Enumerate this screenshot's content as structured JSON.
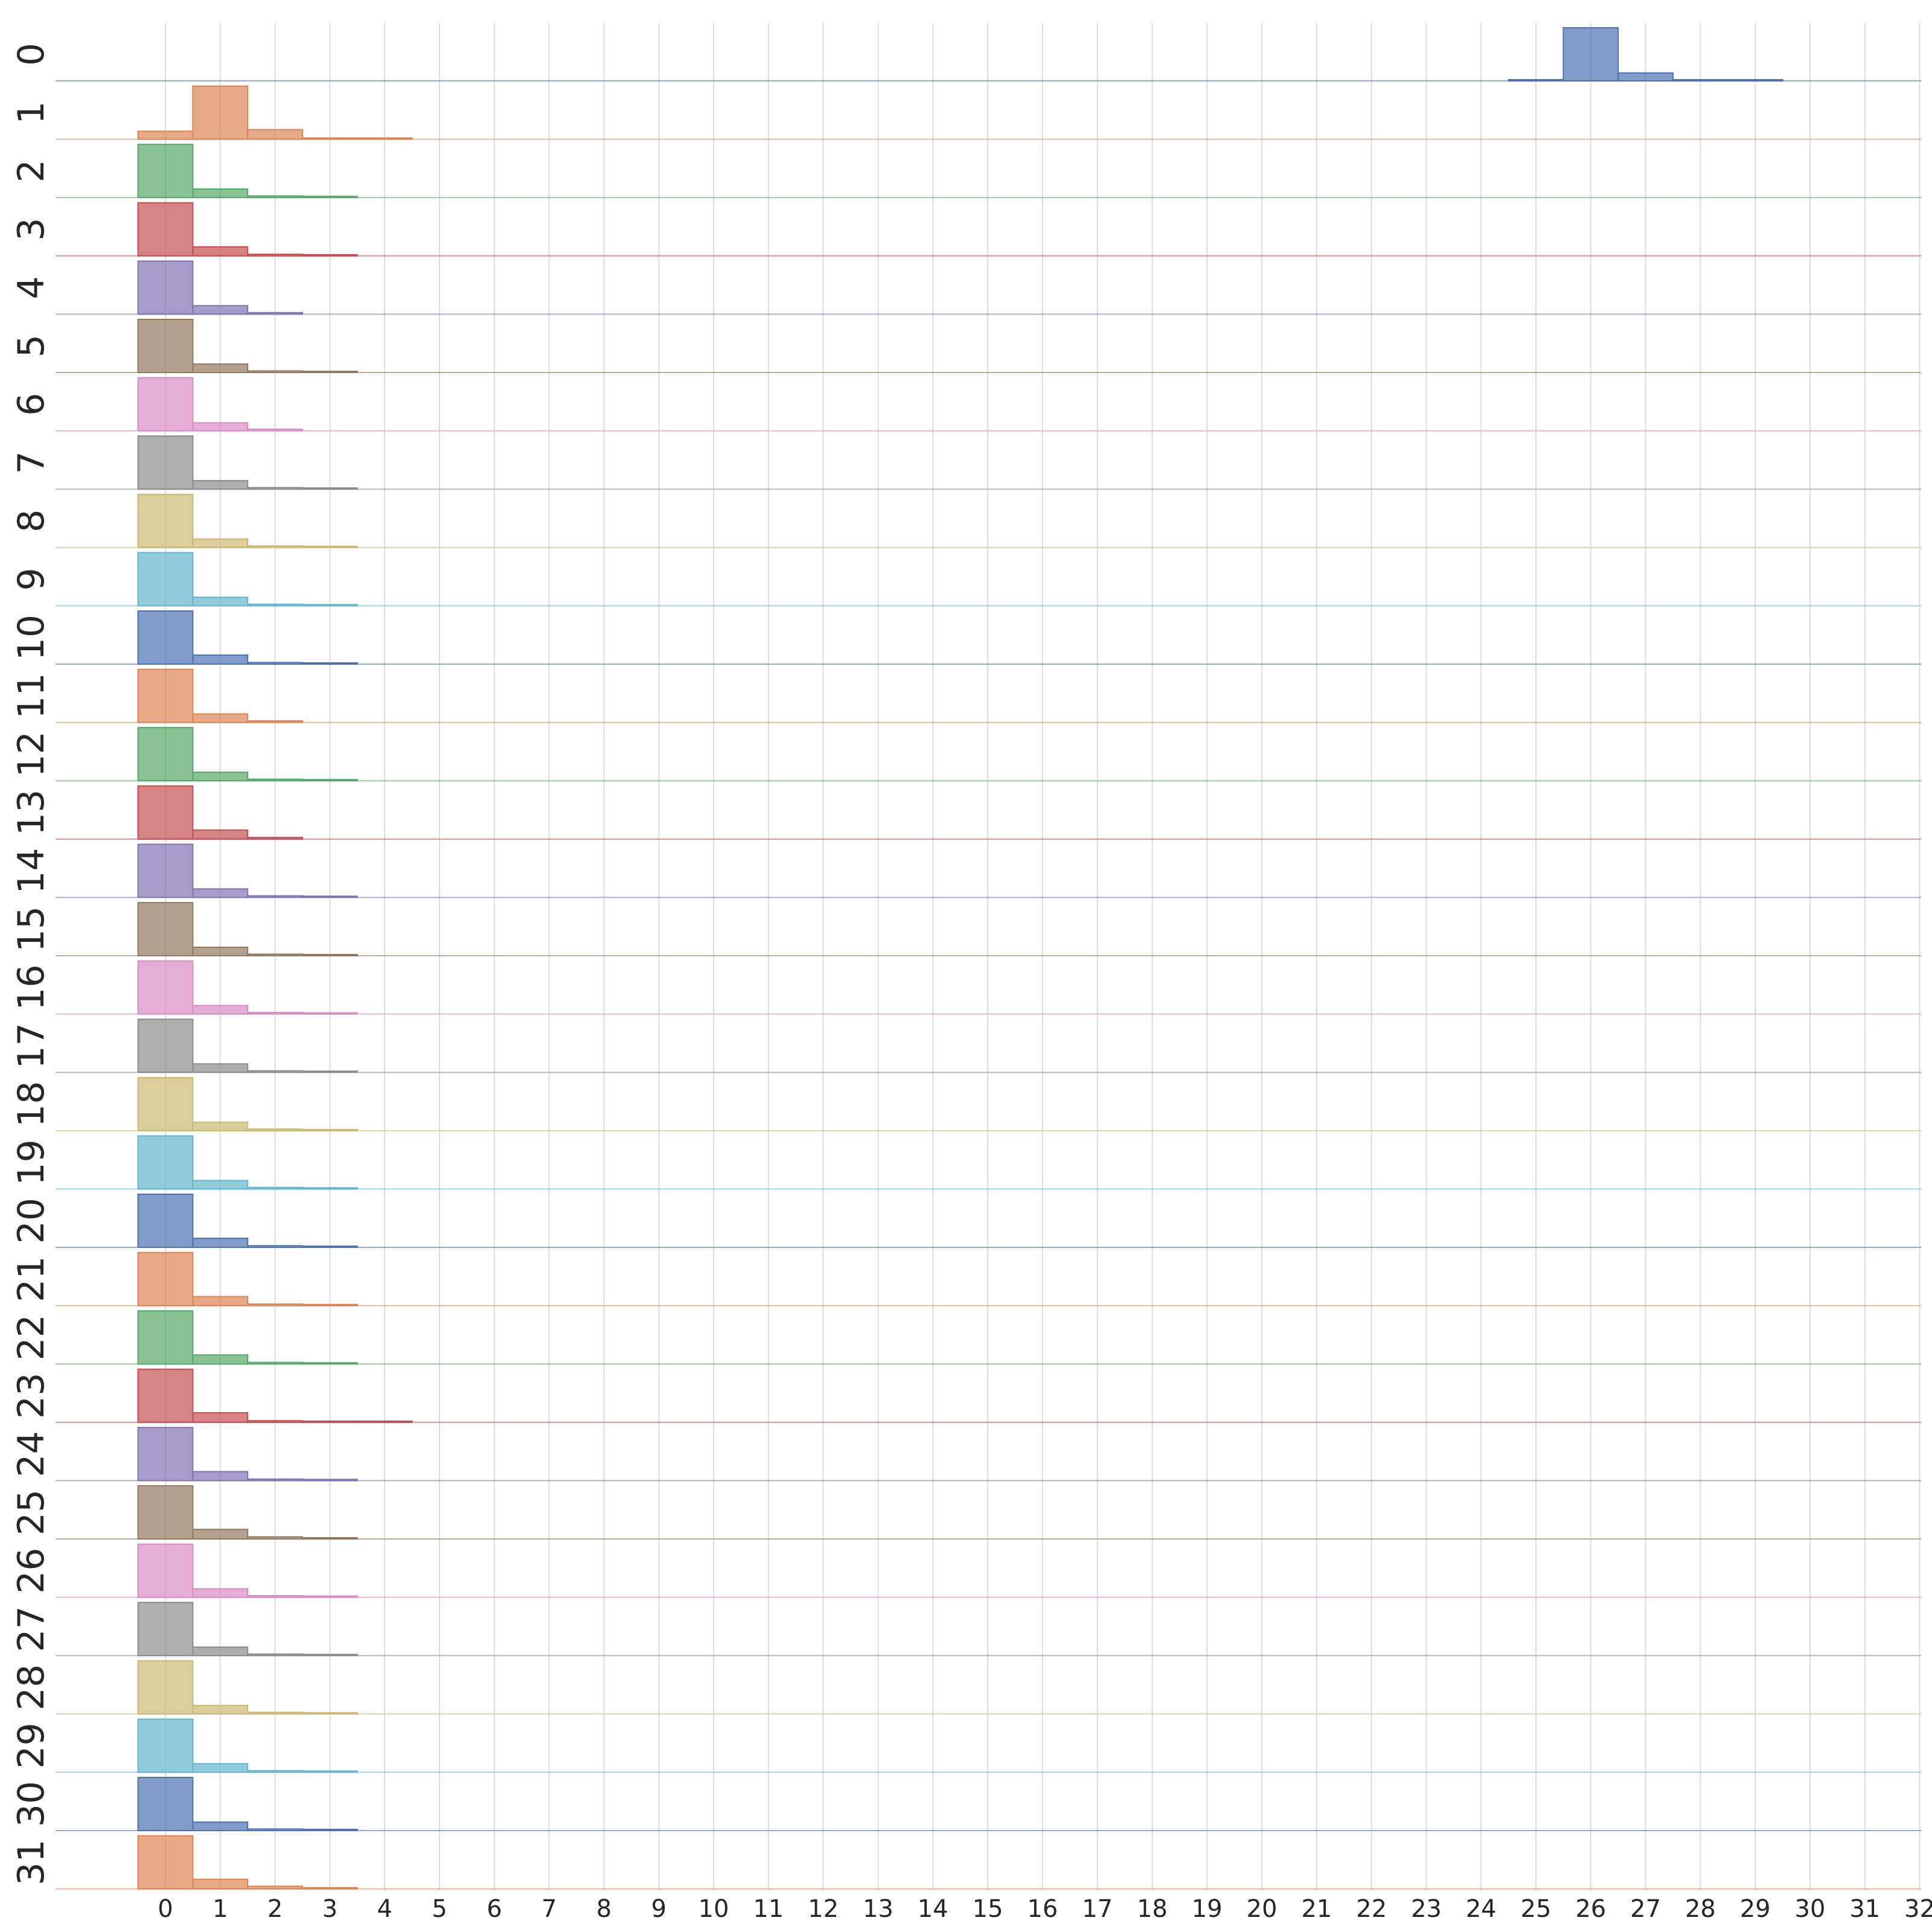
{
  "chart_data": {
    "type": "histogram-ridge",
    "title": "",
    "xlabel": "",
    "ylabel": "",
    "x_ticks": [
      "0",
      "1",
      "2",
      "3",
      "4",
      "5",
      "6",
      "7",
      "8",
      "9",
      "10",
      "11",
      "12",
      "13",
      "14",
      "15",
      "16",
      "17",
      "18",
      "19",
      "20",
      "21",
      "22",
      "23",
      "24",
      "25",
      "26",
      "27",
      "28",
      "29",
      "30",
      "31",
      "32"
    ],
    "xlim": [
      -2,
      32
    ],
    "grid": true,
    "palette": [
      "#4c72b0",
      "#dd8452",
      "#55a868",
      "#c44e52",
      "#8172b3",
      "#937860",
      "#da8bc3",
      "#8c8c8c",
      "#ccb974",
      "#64b5cd"
    ],
    "bin_width": 1,
    "bin_start": -0.5,
    "series": [
      {
        "label": "0",
        "values": [
          0,
          0,
          0,
          0,
          0,
          0,
          0,
          0,
          0,
          0,
          0,
          0,
          0,
          0,
          0,
          0,
          0,
          0,
          0,
          0,
          0,
          0,
          0,
          0,
          0,
          0.02,
          1,
          0.15,
          0.02,
          0.01
        ]
      },
      {
        "label": "1",
        "values": [
          0.15,
          1,
          0.18,
          0.02,
          0.01
        ]
      },
      {
        "label": "2",
        "values": [
          1,
          0.16,
          0.03,
          0.01
        ]
      },
      {
        "label": "3",
        "values": [
          1,
          0.17,
          0.03,
          0.01
        ]
      },
      {
        "label": "4",
        "values": [
          1,
          0.16,
          0.03
        ]
      },
      {
        "label": "5",
        "values": [
          1,
          0.16,
          0.03,
          0.01
        ]
      },
      {
        "label": "6",
        "values": [
          1,
          0.15,
          0.03
        ]
      },
      {
        "label": "7",
        "values": [
          1,
          0.16,
          0.03,
          0.01
        ]
      },
      {
        "label": "8",
        "values": [
          1,
          0.16,
          0.03,
          0.01
        ]
      },
      {
        "label": "9",
        "values": [
          1,
          0.16,
          0.03,
          0.01
        ]
      },
      {
        "label": "10",
        "values": [
          1,
          0.17,
          0.03,
          0.01
        ]
      },
      {
        "label": "11",
        "values": [
          1,
          0.16,
          0.03
        ]
      },
      {
        "label": "12",
        "values": [
          1,
          0.16,
          0.03,
          0.01
        ]
      },
      {
        "label": "13",
        "values": [
          1,
          0.17,
          0.03
        ]
      },
      {
        "label": "14",
        "values": [
          1,
          0.16,
          0.03,
          0.01
        ]
      },
      {
        "label": "15",
        "values": [
          1,
          0.16,
          0.03,
          0.01
        ]
      },
      {
        "label": "16",
        "values": [
          1,
          0.16,
          0.03,
          0.01
        ]
      },
      {
        "label": "17",
        "values": [
          1,
          0.16,
          0.03,
          0.01
        ]
      },
      {
        "label": "18",
        "values": [
          1,
          0.16,
          0.03,
          0.01
        ]
      },
      {
        "label": "19",
        "values": [
          1,
          0.16,
          0.03,
          0.01
        ]
      },
      {
        "label": "20",
        "values": [
          1,
          0.17,
          0.03,
          0.01
        ]
      },
      {
        "label": "21",
        "values": [
          1,
          0.17,
          0.03,
          0.01
        ]
      },
      {
        "label": "22",
        "values": [
          1,
          0.17,
          0.03,
          0.01
        ]
      },
      {
        "label": "23",
        "values": [
          1,
          0.18,
          0.03,
          0.01,
          0.01
        ]
      },
      {
        "label": "24",
        "values": [
          1,
          0.17,
          0.03,
          0.01
        ]
      },
      {
        "label": "25",
        "values": [
          1,
          0.18,
          0.04,
          0.01
        ]
      },
      {
        "label": "26",
        "values": [
          1,
          0.16,
          0.03,
          0.01
        ]
      },
      {
        "label": "27",
        "values": [
          1,
          0.16,
          0.03,
          0.01
        ]
      },
      {
        "label": "28",
        "values": [
          1,
          0.16,
          0.03,
          0.01
        ]
      },
      {
        "label": "29",
        "values": [
          1,
          0.16,
          0.03,
          0.01
        ]
      },
      {
        "label": "30",
        "values": [
          1,
          0.16,
          0.03,
          0.01
        ]
      },
      {
        "label": "31",
        "values": [
          1,
          0.18,
          0.05,
          0.01
        ]
      }
    ]
  }
}
